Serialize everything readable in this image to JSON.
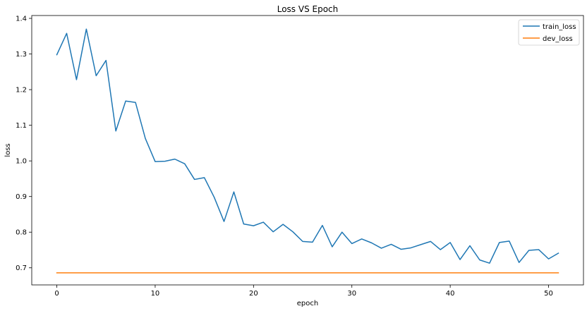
{
  "chart_data": {
    "type": "line",
    "title": "Loss VS Epoch",
    "xlabel": "epoch",
    "ylabel": "loss",
    "xlim": [
      -2.55,
      53.55
    ],
    "ylim": [
      0.652,
      1.408
    ],
    "xticks": [
      0,
      10,
      20,
      30,
      40,
      50
    ],
    "xtick_labels": [
      "0",
      "10",
      "20",
      "30",
      "40",
      "50"
    ],
    "yticks": [
      0.7,
      0.8,
      0.9,
      1.0,
      1.1,
      1.2,
      1.3,
      1.4
    ],
    "ytick_labels": [
      "0.7",
      "0.8",
      "0.9",
      "1.0",
      "1.1",
      "1.2",
      "1.3",
      "1.4"
    ],
    "grid": false,
    "legend_position": "top-right",
    "x": [
      0,
      1,
      2,
      3,
      4,
      5,
      6,
      7,
      8,
      9,
      10,
      11,
      12,
      13,
      14,
      15,
      16,
      17,
      18,
      19,
      20,
      21,
      22,
      23,
      24,
      25,
      26,
      27,
      28,
      29,
      30,
      31,
      32,
      33,
      34,
      35,
      36,
      37,
      38,
      39,
      40,
      41,
      42,
      43,
      44,
      45,
      46,
      47,
      48,
      49,
      50,
      51
    ],
    "series": [
      {
        "name": "train_loss",
        "color": "#1f77b4",
        "values": [
          1.298,
          1.358,
          1.228,
          1.37,
          1.239,
          1.282,
          1.084,
          1.168,
          1.164,
          1.063,
          0.998,
          0.999,
          1.005,
          0.992,
          0.948,
          0.953,
          0.898,
          0.83,
          0.913,
          0.823,
          0.818,
          0.828,
          0.801,
          0.822,
          0.801,
          0.774,
          0.772,
          0.819,
          0.759,
          0.8,
          0.768,
          0.781,
          0.77,
          0.755,
          0.766,
          0.752,
          0.756,
          0.765,
          0.774,
          0.751,
          0.771,
          0.723,
          0.762,
          0.722,
          0.713,
          0.771,
          0.775,
          0.715,
          0.749,
          0.751,
          0.725,
          0.741
        ]
      },
      {
        "name": "dev_loss",
        "color": "#ff7f0e",
        "values": [
          0.686,
          0.686,
          0.686,
          0.686,
          0.686,
          0.686,
          0.686,
          0.686,
          0.686,
          0.686,
          0.686,
          0.686,
          0.686,
          0.686,
          0.686,
          0.686,
          0.686,
          0.686,
          0.686,
          0.686,
          0.686,
          0.686,
          0.686,
          0.686,
          0.686,
          0.686,
          0.686,
          0.686,
          0.686,
          0.686,
          0.686,
          0.686,
          0.686,
          0.686,
          0.686,
          0.686,
          0.686,
          0.686,
          0.686,
          0.686,
          0.686,
          0.686,
          0.686,
          0.686,
          0.686,
          0.686,
          0.686,
          0.686,
          0.686,
          0.686,
          0.686,
          0.686
        ]
      }
    ]
  }
}
